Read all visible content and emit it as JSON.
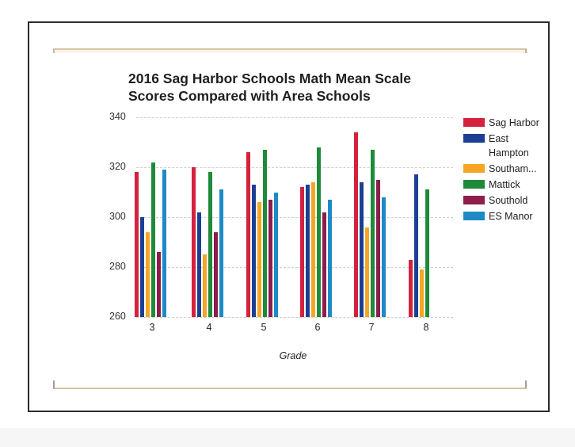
{
  "chart_data": {
    "type": "bar",
    "title": "2016 Sag Harbor Schools Math Mean Scale Scores Compared with Area Schools",
    "title_lines": [
      "2016 Sag Harbor Schools Math Mean Scale",
      "Scores Compared with Area Schools"
    ],
    "xlabel": "Grade",
    "ylabel": "",
    "ylim": [
      260,
      340
    ],
    "yticks": [
      "340",
      "320",
      "300",
      "280",
      "260"
    ],
    "categories": [
      "3",
      "4",
      "5",
      "6",
      "7",
      "8"
    ],
    "grid": true,
    "legend_position": "right",
    "series": [
      {
        "name": "Sag Harbor",
        "legend_label": "Sag Harbor",
        "color": "#d4213d",
        "values": [
          318,
          320,
          326,
          312,
          334,
          283
        ]
      },
      {
        "name": "East Hampton",
        "legend_label": "East Hampton",
        "color": "#1a3f93",
        "values": [
          300,
          302,
          313,
          313,
          314,
          317
        ]
      },
      {
        "name": "Southampton",
        "legend_label": "Southam...",
        "color": "#f5a623",
        "values": [
          294,
          285,
          306,
          314,
          296,
          279
        ]
      },
      {
        "name": "Mattick",
        "legend_label": "Mattick",
        "color": "#1f8a3a",
        "values": [
          322,
          318,
          327,
          328,
          327,
          311
        ]
      },
      {
        "name": "Southold",
        "legend_label": "Southold",
        "color": "#8c1d4c",
        "values": [
          286,
          294,
          307,
          302,
          315,
          null
        ]
      },
      {
        "name": "ES Manor",
        "legend_label": "ES Manor",
        "color": "#1d8ac6",
        "values": [
          319,
          311,
          310,
          307,
          308,
          null
        ]
      }
    ]
  },
  "legend": {
    "items": [
      {
        "label_line1": "Sag Harbor",
        "label_line2": ""
      },
      {
        "label_line1": "East",
        "label_line2": "Hampton"
      },
      {
        "label_line1": "Southam...",
        "label_line2": ""
      },
      {
        "label_line1": "Mattick",
        "label_line2": ""
      },
      {
        "label_line1": "Southold",
        "label_line2": ""
      },
      {
        "label_line1": "ES Manor",
        "label_line2": ""
      }
    ]
  }
}
